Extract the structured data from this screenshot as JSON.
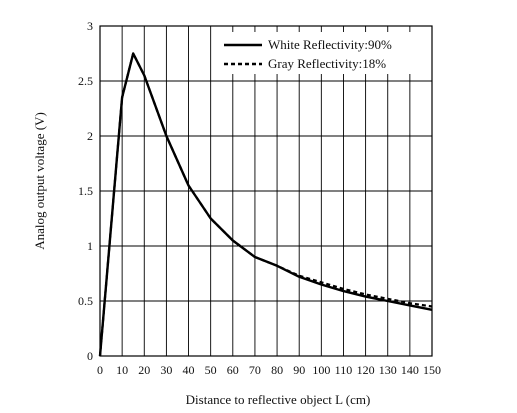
{
  "chart_data": {
    "type": "line",
    "title": "",
    "xlabel": "Distance to reflective object L (cm)",
    "ylabel": "Analog output voltage (V)",
    "xlim": [
      0,
      150
    ],
    "ylim": [
      0,
      3
    ],
    "x_ticks": [
      0,
      10,
      20,
      30,
      40,
      50,
      60,
      70,
      80,
      90,
      100,
      110,
      120,
      130,
      140,
      150
    ],
    "y_ticks": [
      0,
      0.5,
      1,
      1.5,
      2,
      2.5,
      3
    ],
    "y_tick_labels": [
      "0",
      "0.5",
      "1",
      "1.5",
      "2",
      "2.5",
      "3"
    ],
    "grid": true,
    "legend_position": "top-right",
    "series": [
      {
        "name": "White Reflectivity:90%",
        "style": "solid",
        "color": "#000000",
        "x": [
          0,
          10,
          15,
          20,
          30,
          40,
          50,
          60,
          70,
          80,
          90,
          100,
          110,
          120,
          130,
          140,
          150
        ],
        "y": [
          0,
          2.35,
          2.75,
          2.55,
          2.0,
          1.55,
          1.25,
          1.05,
          0.9,
          0.82,
          0.72,
          0.65,
          0.59,
          0.54,
          0.5,
          0.46,
          0.42
        ]
      },
      {
        "name": "Gray Reflectivity:18%",
        "style": "dashed",
        "color": "#000000",
        "x": [
          0,
          10,
          15,
          20,
          30,
          40,
          50,
          60,
          70,
          80,
          90,
          100,
          110,
          120,
          130,
          140,
          150
        ],
        "y": [
          0,
          2.35,
          2.75,
          2.55,
          2.0,
          1.55,
          1.25,
          1.05,
          0.9,
          0.82,
          0.73,
          0.67,
          0.61,
          0.56,
          0.52,
          0.48,
          0.45
        ]
      }
    ]
  }
}
